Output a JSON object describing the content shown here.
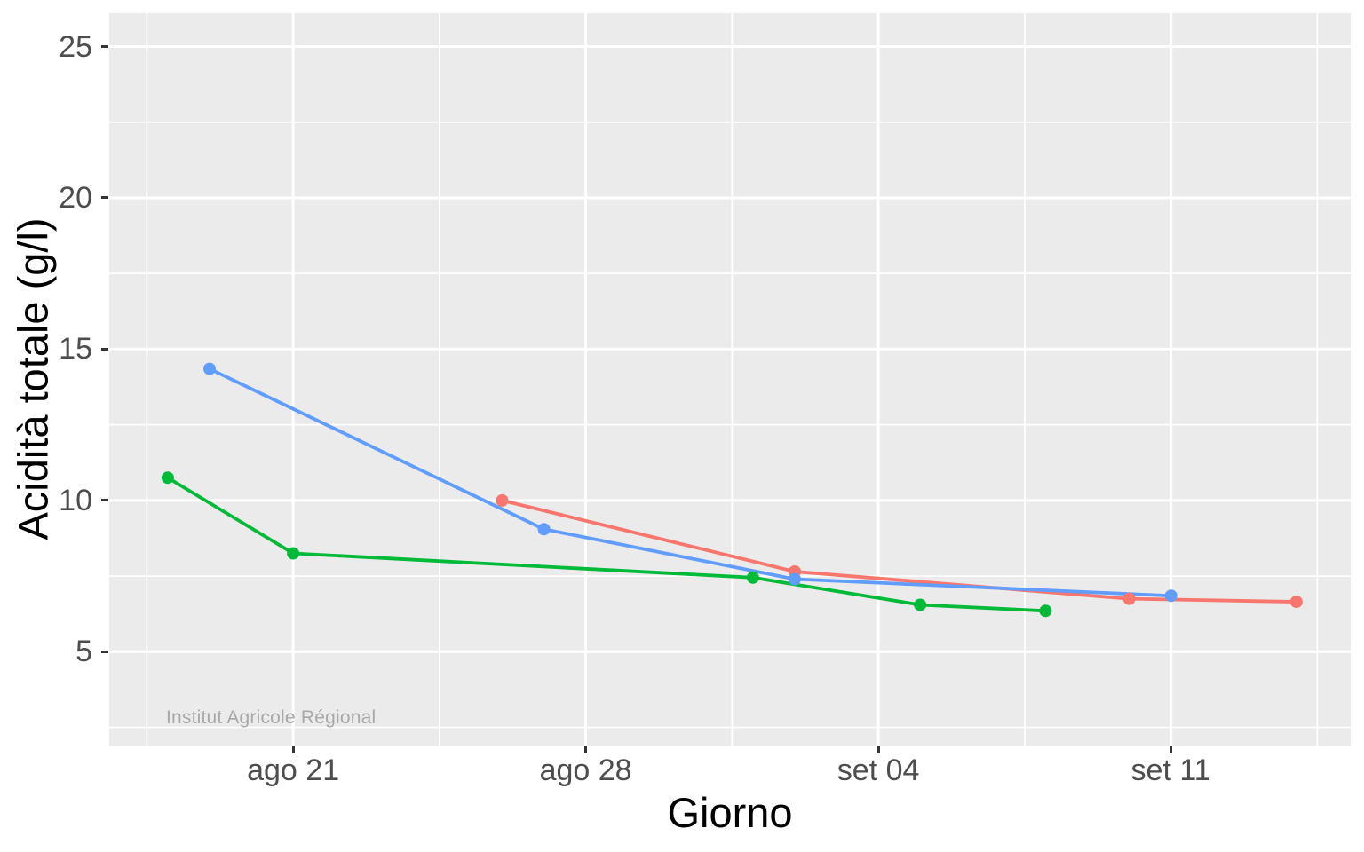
{
  "figure": {
    "background": "#FFFFFF",
    "panel_background": "#EBEBEB",
    "gridline_color": "#FFFFFF",
    "tick_label_color": "#4D4D4D",
    "watermark_color": "#A8A8A8"
  },
  "chart_data": {
    "type": "line",
    "title": "",
    "xlabel": "Giorno",
    "ylabel": "Acidità totale (g/l)",
    "watermark": "Institut Agricole Régional",
    "legend": "none",
    "grid": "major and minor, white on gray panel",
    "x_axis": {
      "unit": "day_index (ago = August day number, set = 31 + September day number)",
      "xlim_day_index": [
        16.6,
        46.3
      ],
      "major_ticks": [
        {
          "day_index": 21,
          "label": "ago 21"
        },
        {
          "day_index": 28,
          "label": "ago 28"
        },
        {
          "day_index": 35,
          "label": "set 04"
        },
        {
          "day_index": 42,
          "label": "set 11"
        }
      ],
      "minor_ticks_day_index": [
        17.5,
        24.5,
        31.5,
        38.5,
        45.5
      ]
    },
    "y_axis": {
      "ylim": [
        1.9,
        26.1
      ],
      "major_ticks": [
        25,
        20,
        15,
        10,
        5
      ],
      "minor_ticks": [
        22.5,
        17.5,
        12.5,
        7.5,
        2.5
      ]
    },
    "series": [
      {
        "name": "red",
        "color": "#F8766D",
        "points": [
          {
            "date": "ago 26",
            "day_index": 26,
            "value": 10.0
          },
          {
            "date": "set 02",
            "day_index": 33,
            "value": 7.65
          },
          {
            "date": "set 10",
            "day_index": 41,
            "value": 6.75
          },
          {
            "date": "set 14",
            "day_index": 45,
            "value": 6.65
          }
        ]
      },
      {
        "name": "green",
        "color": "#00BA38",
        "points": [
          {
            "date": "ago 18",
            "day_index": 18,
            "value": 10.75
          },
          {
            "date": "ago 21",
            "day_index": 21,
            "value": 8.25
          },
          {
            "date": "set 01",
            "day_index": 32,
            "value": 7.45
          },
          {
            "date": "set 05",
            "day_index": 36,
            "value": 6.55
          },
          {
            "date": "set 08",
            "day_index": 39,
            "value": 6.35
          }
        ]
      },
      {
        "name": "blue",
        "color": "#619CFF",
        "points": [
          {
            "date": "ago 19",
            "day_index": 19,
            "value": 14.35
          },
          {
            "date": "ago 27",
            "day_index": 27,
            "value": 9.05
          },
          {
            "date": "set 02",
            "day_index": 33,
            "value": 7.4
          },
          {
            "date": "set 11",
            "day_index": 42,
            "value": 6.85
          }
        ]
      }
    ]
  }
}
